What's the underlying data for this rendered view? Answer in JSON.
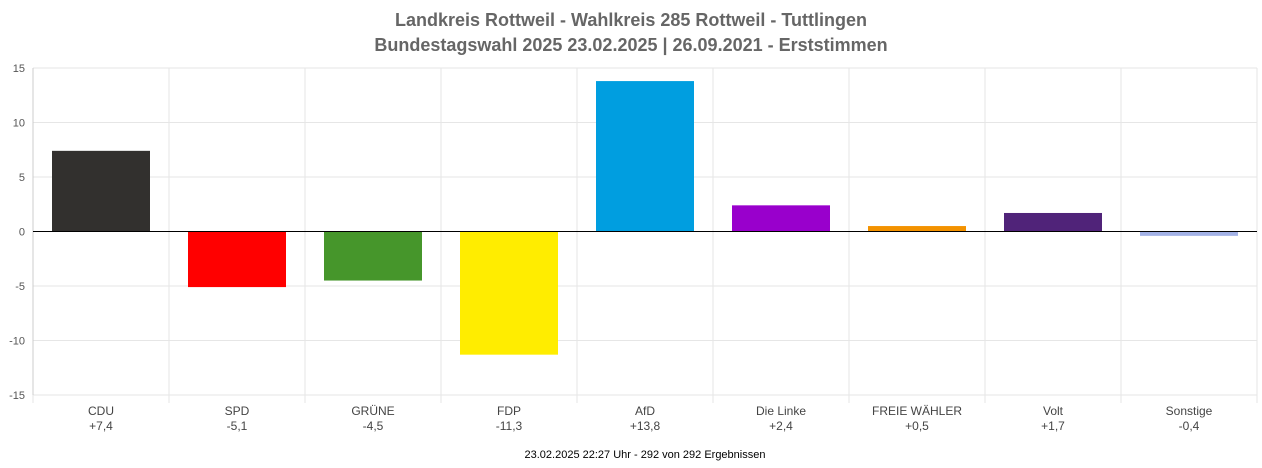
{
  "chart_data": {
    "type": "bar",
    "title": "Landkreis Rottweil - Wahlkreis 285 Rottweil - Tuttlingen",
    "subtitle": "Bundestagswahl 2025 23.02.2025  | 26.09.2021 - Erststimmen",
    "categories": [
      "CDU",
      "SPD",
      "GRÜNE",
      "FDP",
      "AfD",
      "Die Linke",
      "FREIE WÄHLER",
      "Volt",
      "Sonstige"
    ],
    "value_labels": [
      "+7,4",
      "-5,1",
      "-4,5",
      "-11,3",
      "+13,8",
      "+2,4",
      "+0,5",
      "+1,7",
      "-0,4"
    ],
    "values": [
      7.4,
      -5.1,
      -4.5,
      -11.3,
      13.8,
      2.4,
      0.5,
      1.7,
      -0.4
    ],
    "colors": [
      "#32302e",
      "#ff0000",
      "#46962b",
      "#ffed00",
      "#009ee0",
      "#9900cc",
      "#f39200",
      "#502379",
      "#a3b2e6"
    ],
    "ylim": [
      -15,
      15
    ],
    "yticks": [
      15,
      10,
      5,
      0,
      -5,
      -10,
      -15
    ],
    "grid": true,
    "legend": "none",
    "footer": "23.02.2025 22:27 Uhr - 292 von 292 Ergebnissen"
  }
}
